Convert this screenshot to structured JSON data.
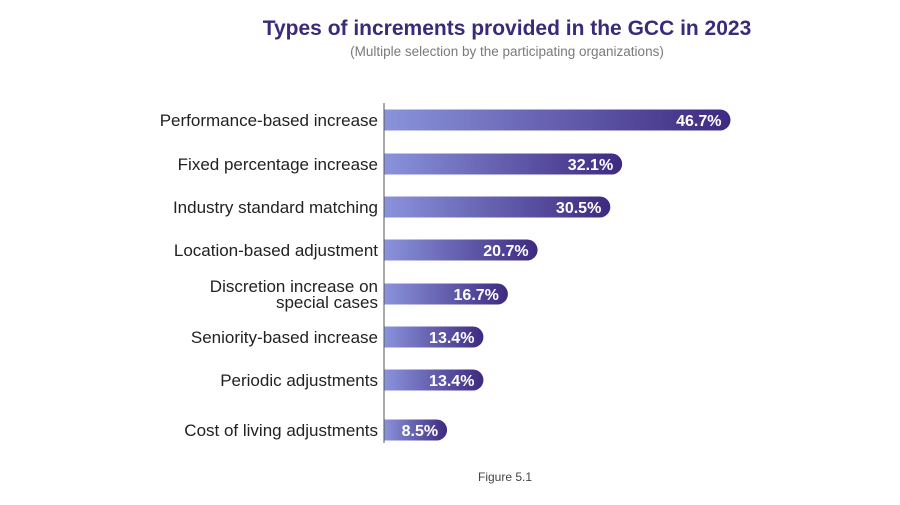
{
  "chart_data": {
    "type": "bar",
    "orientation": "horizontal",
    "title": "Types of increments provided in the GCC in 2023",
    "subtitle": "(Multiple selection by the participating organizations)",
    "categories": [
      "Performance-based increase",
      "Fixed percentage increase",
      "Industry standard matching",
      "Location-based adjustment",
      "Discretion increase on special cases",
      "Seniority-based increase",
      "Periodic adjustments",
      "Cost of living adjustments"
    ],
    "category_label_lines": [
      [
        "Performance-based increase"
      ],
      [
        "Fixed percentage increase"
      ],
      [
        "Industry standard matching"
      ],
      [
        "Location-based adjustment"
      ],
      [
        "Discretion increase on",
        "special cases"
      ],
      [
        "Seniority-based increase"
      ],
      [
        "Periodic adjustments"
      ],
      [
        "Cost of living adjustments"
      ]
    ],
    "values": [
      46.7,
      32.1,
      30.5,
      20.7,
      16.7,
      13.4,
      13.4,
      8.5
    ],
    "value_labels": [
      "46.7%",
      "32.1%",
      "30.5%",
      "20.7%",
      "16.7%",
      "13.4%",
      "13.4%",
      "8.5%"
    ],
    "unit": "%",
    "xlabel": "",
    "ylabel": "",
    "colors": {
      "bar_start": "#8a93db",
      "bar_end": "#3e2a80",
      "title": "#3b2a7a",
      "axis": "#555555",
      "label": "#222222",
      "value_label": "#ffffff"
    },
    "grid": false,
    "legend": "none"
  },
  "caption": "Figure 5.1"
}
